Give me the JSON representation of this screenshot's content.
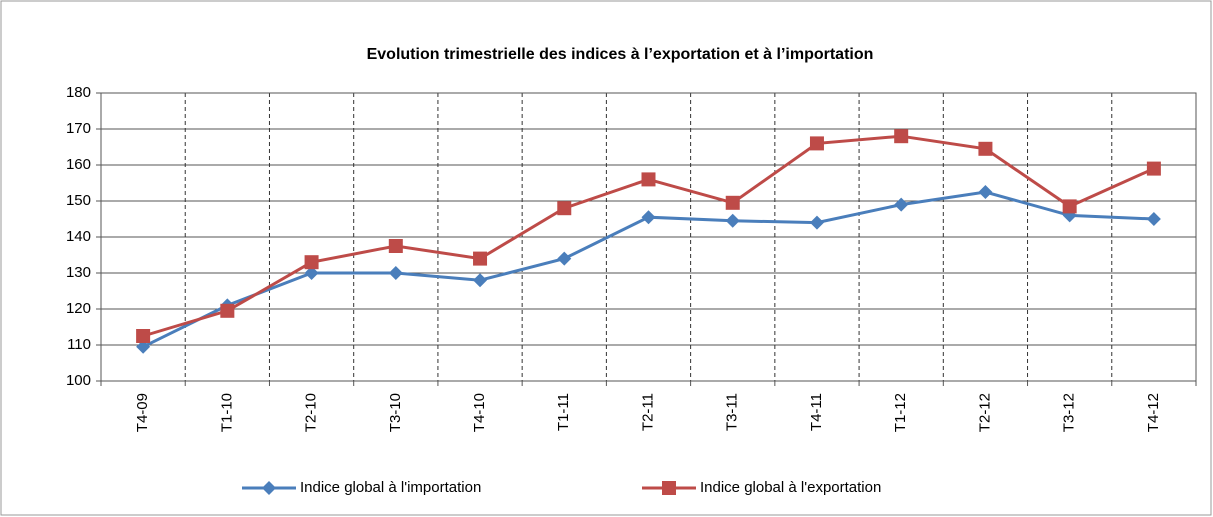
{
  "chart_data": {
    "type": "line",
    "title": "Evolution trimestrielle des indices à l’exportation et à l’importation",
    "categories": [
      "T4-09",
      "T1-10",
      "T2-10",
      "T3-10",
      "T4-10",
      "T1-11",
      "T2-11",
      "T3-11",
      "T4-11",
      "T1-12",
      "T2-12",
      "T3-12",
      "T4-12"
    ],
    "series": [
      {
        "name": "Indice global à l'importation",
        "color": "#4a7ebb",
        "marker": "diamond",
        "values": [
          109.5,
          121,
          130,
          130,
          128,
          134,
          145.5,
          144.5,
          144,
          149,
          152.5,
          146,
          145
        ]
      },
      {
        "name": "Indice global à l'exportation",
        "color": "#be4b48",
        "marker": "square",
        "values": [
          112.5,
          119.5,
          133,
          137.5,
          134,
          148,
          156,
          149.5,
          166,
          168,
          164.5,
          148.5,
          159
        ]
      }
    ],
    "ylim": [
      100,
      180
    ],
    "yticks": [
      100,
      110,
      120,
      130,
      140,
      150,
      160,
      170,
      180
    ],
    "grid": true,
    "legend": "bottom"
  }
}
